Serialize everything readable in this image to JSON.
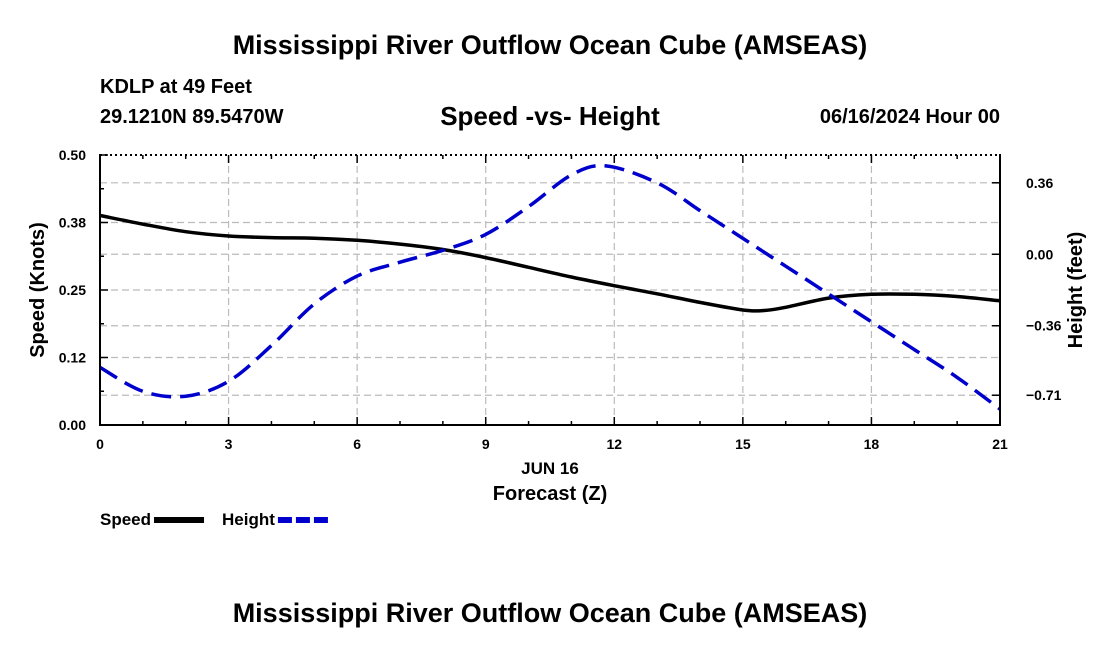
{
  "header": {
    "title": "Mississippi River Outflow Ocean Cube (AMSEAS)",
    "station": "KDLP at 49 Feet",
    "coords": "29.1210N  89.5470W",
    "subtitle": "Speed -vs- Height",
    "datetime": "06/16/2024 Hour 00"
  },
  "footer": {
    "title": "Mississippi River Outflow Ocean Cube (AMSEAS)"
  },
  "chart_data": {
    "type": "line",
    "title": "Speed -vs- Height",
    "xlabel_date": "JUN 16",
    "xlabel": "Forecast (Z)",
    "ylabel": "Speed (Knots)",
    "y2label": "Height (feet)",
    "xlim": [
      0,
      21
    ],
    "ylim": [
      0,
      0.5
    ],
    "y2lim": [
      -0.86,
      0.5
    ],
    "x_ticks": [
      0,
      3,
      6,
      9,
      12,
      15,
      18,
      21
    ],
    "x_tick_labels": [
      "0",
      "3",
      "6",
      "9",
      "12",
      "15",
      "18",
      "21"
    ],
    "y_ticks": [
      0,
      0.125,
      0.25,
      0.375,
      0.5
    ],
    "y_tick_labels": [
      "0.00",
      "0.12",
      "0.25",
      "0.38",
      "0.50"
    ],
    "y2_ticks": [
      0.36,
      0,
      -0.36,
      -0.71
    ],
    "y2_tick_labels": [
      "0.36",
      "0.00",
      "−0.36",
      "−0.71"
    ],
    "grid": true,
    "series": [
      {
        "name": "Speed",
        "axis": "left",
        "color": "#000000",
        "dash": "solid",
        "x": [
          0,
          1,
          2,
          3,
          4,
          5,
          6,
          7,
          8,
          9,
          10,
          11,
          12,
          13,
          14,
          15,
          15.5,
          16,
          17,
          18,
          19,
          20,
          21
        ],
        "values": [
          0.388,
          0.372,
          0.358,
          0.35,
          0.347,
          0.346,
          0.342,
          0.335,
          0.325,
          0.31,
          0.292,
          0.274,
          0.258,
          0.243,
          0.227,
          0.213,
          0.212,
          0.218,
          0.235,
          0.242,
          0.242,
          0.238,
          0.23
        ]
      },
      {
        "name": "Height",
        "axis": "right",
        "color": "#0000cc",
        "dash": "dashed",
        "x": [
          0,
          1,
          2,
          3,
          4,
          5,
          6,
          7,
          8,
          9,
          10,
          11,
          11.8,
          13,
          14,
          15,
          16,
          17,
          18,
          19,
          20,
          21
        ],
        "values": [
          -0.57,
          -0.69,
          -0.715,
          -0.64,
          -0.46,
          -0.25,
          -0.11,
          -0.04,
          0.02,
          0.1,
          0.24,
          0.4,
          0.445,
          0.36,
          0.22,
          0.08,
          -0.06,
          -0.2,
          -0.34,
          -0.48,
          -0.62,
          -0.78
        ]
      }
    ],
    "legend": [
      {
        "label": "Speed",
        "color": "#000000",
        "dash": "solid"
      },
      {
        "label": "Height",
        "color": "#0000cc",
        "dash": "dashed"
      }
    ]
  }
}
